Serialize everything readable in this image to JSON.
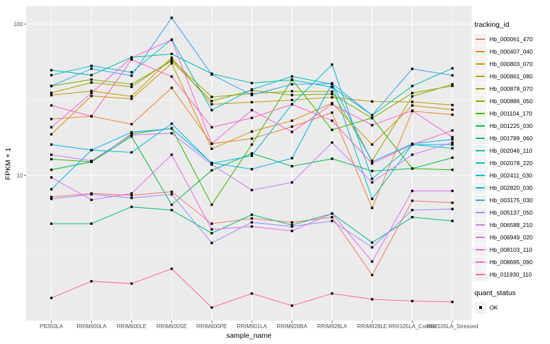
{
  "figure": {
    "background": "#FFFFFF",
    "panel_background": "#EBEBEB",
    "grid_color": "#FFFFFF",
    "tick_label_color": "#4D4D4D",
    "tick_mark_color": "#333333",
    "legend_key_background": "#F2F2F2"
  },
  "legend": {
    "tracking_title": "tracking_id",
    "quant_title": "quant_status",
    "quant_label": "OK"
  },
  "chart_data": {
    "type": "line",
    "title": "",
    "xlabel": "sample_name",
    "ylabel": "FPKM + 1",
    "y_scale": "log10",
    "ylim": [
      1.1,
      131
    ],
    "y_ticks": [
      10,
      100
    ],
    "y_tick_labels": [
      "10",
      "100"
    ],
    "y_minor_gridlines": [
      3.162,
      31.623
    ],
    "grid": true,
    "legend_position": "right",
    "point_shape": "black-square",
    "categories": [
      "PB350LA",
      "RRIM600LA",
      "RRIM600LE",
      "RRIM600SE",
      "RRIM600PE",
      "RRIM901LA",
      "RRIM928BA",
      "RRIM928LA",
      "RRIM928LE",
      "RRII105LA_Control",
      "RRII105LA_Stressed"
    ],
    "series": [
      {
        "name": "Hb_000061_470",
        "color": "#F8766D",
        "values": [
          7.2,
          7.6,
          7.4,
          7.8,
          4.8,
          5.2,
          4.9,
          5.3,
          2.2,
          6.8,
          6.6
        ]
      },
      {
        "name": "Hb_000407_040",
        "color": "#EA8331",
        "values": [
          23.6,
          24.6,
          21.8,
          37.9,
          16.2,
          17.5,
          21.0,
          26.0,
          6.1,
          26.6,
          25.2
        ]
      },
      {
        "name": "Hb_000803_070",
        "color": "#D89000",
        "values": [
          18.7,
          33.5,
          32.1,
          55.0,
          15.0,
          19.5,
          23.0,
          30.0,
          16.0,
          29.0,
          27.2
        ]
      },
      {
        "name": "Hb_000861_080",
        "color": "#C09B00",
        "values": [
          33.9,
          36.1,
          33.3,
          60.0,
          29.5,
          30.5,
          31.5,
          32.8,
          30.8,
          30.6,
          29.2
        ]
      },
      {
        "name": "Hb_000878_070",
        "color": "#A3A500",
        "values": [
          35.1,
          41.1,
          38.5,
          58.3,
          33.0,
          34.7,
          36.0,
          35.8,
          12.5,
          33.3,
          40.0
        ]
      },
      {
        "name": "Hb_000886_050",
        "color": "#7CAE00",
        "values": [
          39.0,
          43.0,
          40.0,
          57.0,
          31.0,
          36.5,
          34.0,
          34.5,
          23.9,
          35.0,
          39.1
        ]
      },
      {
        "name": "Hb_001104_170",
        "color": "#39B600",
        "values": [
          12.8,
          12.3,
          18.8,
          20.5,
          6.4,
          16.0,
          43.0,
          20.0,
          24.0,
          11.1,
          10.9
        ]
      },
      {
        "name": "Hb_001225_030",
        "color": "#00BB4E",
        "values": [
          10.9,
          12.3,
          18.1,
          6.4,
          10.8,
          14.0,
          11.5,
          12.9,
          10.7,
          11.1,
          13.1
        ]
      },
      {
        "name": "Hb_001789_060",
        "color": "#00BF7D",
        "values": [
          4.8,
          4.8,
          6.2,
          5.9,
          4.15,
          5.5,
          4.7,
          5.6,
          3.6,
          5.3,
          5.0
        ]
      },
      {
        "name": "Hb_002046_110",
        "color": "#00C1A3",
        "values": [
          49.6,
          46.0,
          60.3,
          63.5,
          47.0,
          40.8,
          42.8,
          38.3,
          25.0,
          39.0,
          51.0
        ]
      },
      {
        "name": "Hb_002078_220",
        "color": "#00BFC4",
        "values": [
          46.0,
          53.0,
          48.0,
          79.0,
          27.0,
          37.0,
          45.1,
          40.0,
          7.0,
          16.0,
          15.1
        ]
      },
      {
        "name": "Hb_002411_030",
        "color": "#00BAE0",
        "values": [
          16.0,
          14.7,
          14.2,
          22.0,
          12.0,
          13.5,
          29.5,
          54.0,
          9.5,
          16.0,
          16.0
        ]
      },
      {
        "name": "Hb_002820_030",
        "color": "#00B0F6",
        "values": [
          8.1,
          14.7,
          19.3,
          20.4,
          12.1,
          11.0,
          13.0,
          40.6,
          12.3,
          16.2,
          17.3
        ]
      },
      {
        "name": "Hb_003175_030",
        "color": "#35A2FF",
        "values": [
          39.0,
          50.7,
          45.6,
          110.0,
          46.5,
          34.0,
          40.0,
          40.4,
          25.0,
          50.6,
          45.8
        ]
      },
      {
        "name": "Hb_005137_050",
        "color": "#9590FF",
        "values": [
          7.0,
          7.5,
          7.1,
          7.5,
          3.58,
          4.9,
          4.6,
          5.0,
          3.35,
          5.9,
          6.0
        ]
      },
      {
        "name": "Hb_006588_210",
        "color": "#C77CFF",
        "values": [
          13.7,
          12.5,
          18.5,
          19.0,
          11.8,
          8.0,
          9.0,
          16.5,
          9.0,
          13.7,
          16.5
        ]
      },
      {
        "name": "Hb_006949_020",
        "color": "#E76BF3",
        "values": [
          9.7,
          6.9,
          7.6,
          13.7,
          4.4,
          4.6,
          4.3,
          5.6,
          2.7,
          7.9,
          7.9
        ]
      },
      {
        "name": "Hb_008103_110",
        "color": "#FA62DB",
        "values": [
          20.8,
          35.0,
          60.0,
          78.6,
          16.2,
          27.0,
          19.4,
          29.5,
          21.5,
          26.8,
          17.9
        ]
      },
      {
        "name": "Hb_008695_090",
        "color": "#FF62BC",
        "values": [
          29.0,
          24.6,
          58.3,
          45.0,
          20.8,
          24.0,
          29.5,
          23.0,
          12.0,
          16.0,
          19.8
        ]
      },
      {
        "name": "Hb_011930_110",
        "color": "#FF6A98",
        "values": [
          1.55,
          2.0,
          1.93,
          2.42,
          1.34,
          1.66,
          1.38,
          1.66,
          1.52,
          1.48,
          1.46
        ]
      }
    ],
    "quant_status_series": [
      {
        "label": "OK",
        "marker": "black-square"
      }
    ]
  }
}
